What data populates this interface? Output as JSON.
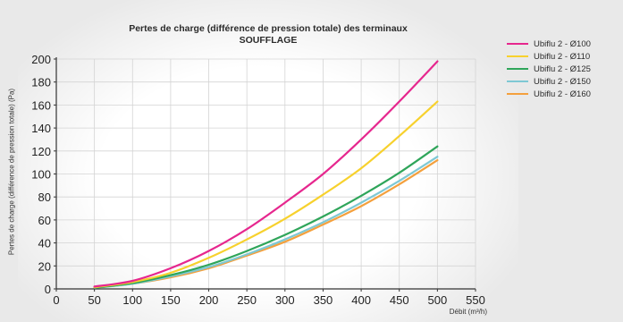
{
  "chart_data": {
    "type": "line",
    "title": "Pertes de charge (différence de pression totale) des terminaux",
    "subtitle": "SOUFFLAGE",
    "ylabel": "Pertes de charge (différence de pression totale) (Pa)",
    "xlabel": "Débit (m³/h)",
    "xlim": [
      0,
      550
    ],
    "ylim": [
      0,
      200
    ],
    "x_ticks": [
      0,
      50,
      100,
      150,
      200,
      250,
      300,
      350,
      400,
      450,
      500,
      550
    ],
    "y_ticks": [
      0,
      20,
      40,
      60,
      80,
      100,
      120,
      140,
      160,
      180,
      200
    ],
    "grid": true,
    "legend_position": "right",
    "x": [
      50,
      100,
      150,
      200,
      250,
      300,
      350,
      400,
      450,
      500
    ],
    "series": [
      {
        "name": "Ubiflu 2 - Ø100",
        "color": "#e6278e",
        "values": [
          2,
          7,
          18,
          33,
          52,
          75,
          100,
          130,
          163,
          198
        ]
      },
      {
        "name": "Ubiflu 2 - Ø110",
        "color": "#f7d12d",
        "values": [
          1.5,
          6,
          14,
          27,
          43,
          61,
          82,
          105,
          133,
          163
        ]
      },
      {
        "name": "Ubiflu 2 - Ø125",
        "color": "#2fa55a",
        "values": [
          1,
          5,
          12,
          21,
          33,
          47,
          63,
          81,
          101,
          124
        ]
      },
      {
        "name": "Ubiflu 2 - Ø150",
        "color": "#7ec8d4",
        "values": [
          1,
          4.5,
          11,
          19,
          30,
          43,
          58,
          75,
          94,
          115
        ]
      },
      {
        "name": "Ubiflu 2 - Ø160",
        "color": "#f4a03d",
        "values": [
          1,
          4.5,
          10,
          18,
          29,
          41,
          56,
          72,
          91,
          112
        ]
      }
    ]
  }
}
